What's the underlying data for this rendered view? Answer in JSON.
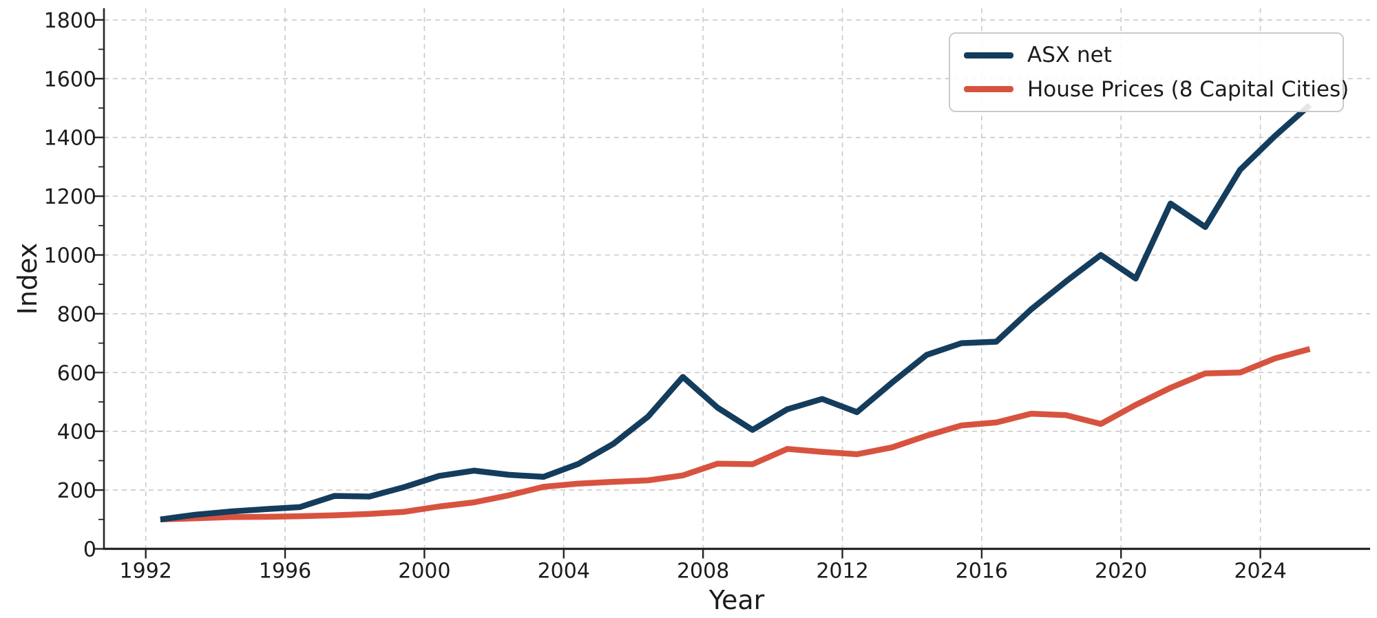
{
  "figure": {
    "background": "#ffffff"
  },
  "chart_data": {
    "type": "line",
    "title": "",
    "xlabel": "Year",
    "ylabel": "Index",
    "legend_position": "upper-right",
    "grid": {
      "visible": true,
      "style": "dashed",
      "color": "#c9c9c9"
    },
    "axis": {
      "spine_color": "#262626",
      "tick_label_color": "#1c1c1c",
      "x_ticks": [
        1992,
        1996,
        2000,
        2004,
        2008,
        2012,
        2016,
        2020,
        2024
      ],
      "y_ticks": [
        0,
        200,
        400,
        600,
        800,
        1000,
        1200,
        1400,
        1600,
        1800
      ],
      "y_minor_ticks": [
        100,
        300,
        500,
        700,
        900,
        1100,
        1300,
        1500,
        1700
      ],
      "xlim": [
        1990.8,
        2027.2
      ],
      "ylim": [
        0,
        1840
      ]
    },
    "x": [
      1992,
      1993,
      1994,
      1995,
      1996,
      1997,
      1998,
      1999,
      2000,
      2001,
      2002,
      2003,
      2004,
      2005,
      2006,
      2007,
      2008,
      2009,
      2010,
      2011,
      2012,
      2013,
      2014,
      2015,
      2016,
      2017,
      2018,
      2019,
      2020,
      2021,
      2022,
      2023,
      2024,
      2025
    ],
    "series": [
      {
        "name": "ASX net",
        "color": "#143c5c",
        "values": [
          100,
          116,
          127,
          135,
          142,
          180,
          178,
          210,
          248,
          266,
          252,
          245,
          289,
          357,
          450,
          585,
          480,
          405,
          475,
          510,
          465,
          565,
          660,
          700,
          705,
          815,
          910,
          1000,
          920,
          1175,
          1095,
          1290,
          1405,
          1510
        ]
      },
      {
        "name": "House Prices (8 Capital Cities)",
        "color": "#d7533f",
        "values": [
          100,
          104,
          108,
          109,
          111,
          114,
          119,
          126,
          144,
          158,
          182,
          211,
          222,
          228,
          233,
          250,
          290,
          288,
          340,
          330,
          322,
          345,
          385,
          420,
          430,
          460,
          455,
          425,
          490,
          548,
          597,
          600,
          648,
          680
        ]
      }
    ]
  }
}
